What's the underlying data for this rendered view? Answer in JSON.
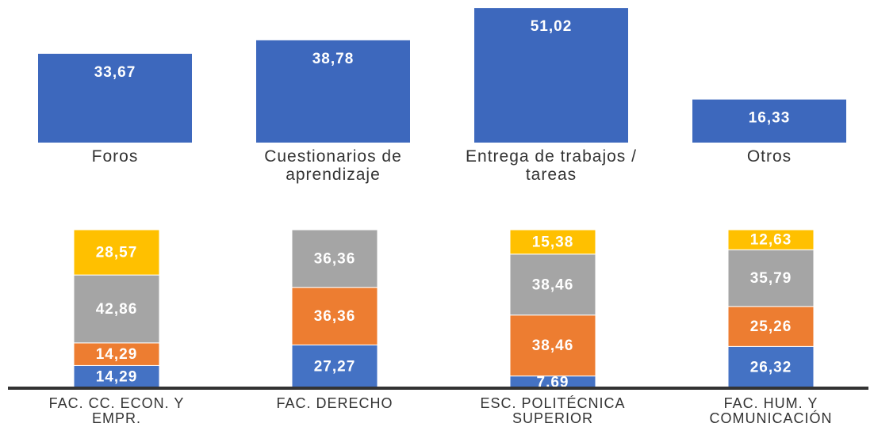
{
  "chart_data": [
    {
      "type": "bar",
      "categories": [
        "Foros",
        "Cuestionarios de aprendizaje",
        "Entrega de trabajos / tareas",
        "Otros"
      ],
      "values": [
        33.67,
        38.78,
        51.02,
        16.33
      ],
      "value_labels": [
        "33,67",
        "38,78",
        "51,02",
        "16,33"
      ],
      "color": "#3d68bd"
    },
    {
      "type": "stacked_bar",
      "categories": [
        "FAC. CC. ECON. Y EMPR.",
        "FAC. DERECHO",
        "ESC. POLITÉCNICA SUPERIOR",
        "FAC. HUM. Y COMUNICACIÓN"
      ],
      "series": [
        {
          "color": "#4472c4",
          "values": [
            14.29,
            27.27,
            7.69,
            26.32
          ],
          "value_labels": [
            "14,29",
            "27,27",
            "7,69",
            "26,32"
          ]
        },
        {
          "color": "#ed7d31",
          "values": [
            14.29,
            36.36,
            38.46,
            25.26
          ],
          "value_labels": [
            "14,29",
            "36,36",
            "38,46",
            "25,26"
          ]
        },
        {
          "color": "#a5a5a5",
          "values": [
            42.86,
            36.36,
            38.46,
            35.79
          ],
          "value_labels": [
            "42,86",
            "36,36",
            "38,46",
            "35,79"
          ]
        },
        {
          "color": "#ffc000",
          "values": [
            28.57,
            null,
            15.38,
            12.63
          ],
          "value_labels": [
            "28,57",
            null,
            "15,38",
            "12,63"
          ]
        }
      ]
    }
  ]
}
